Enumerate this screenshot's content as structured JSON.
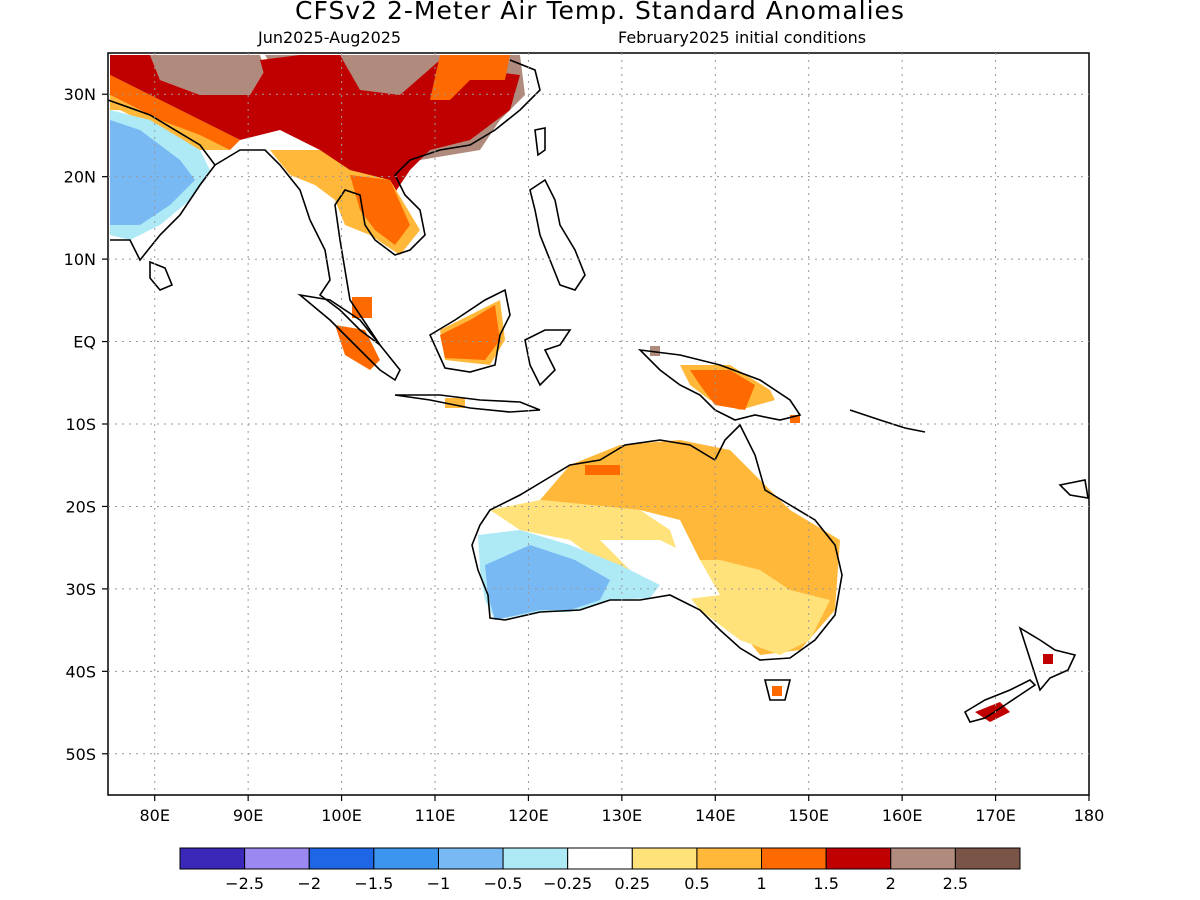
{
  "title": "CFSv2 2-Meter Air Temp. Standard Anomalies",
  "subtitle_left": "Jun2025-Aug2025",
  "subtitle_right": "February2025 initial conditions",
  "map": {
    "lon_range": [
      75,
      180
    ],
    "lat_range": [
      -55,
      35
    ],
    "lat_labels": [
      "30N",
      "20N",
      "10N",
      "EQ",
      "10S",
      "20S",
      "30S",
      "40S",
      "50S"
    ],
    "lat_values": [
      30,
      20,
      10,
      0,
      -10,
      -20,
      -30,
      -40,
      -50
    ],
    "lon_labels": [
      "80E",
      "90E",
      "100E",
      "110E",
      "120E",
      "130E",
      "140E",
      "150E",
      "160E",
      "170E",
      "180"
    ],
    "lon_values": [
      80,
      90,
      100,
      110,
      120,
      130,
      140,
      150,
      160,
      170,
      180
    ],
    "grid": true
  },
  "colorbar": {
    "colors": [
      "#3a28b8",
      "#9b88f0",
      "#1f66e6",
      "#3c96f0",
      "#78b9f4",
      "#aeeaf6",
      "#ffffff",
      "#ffe27a",
      "#ffb83a",
      "#ff6a00",
      "#c00000",
      "#b08a7c",
      "#7a5446"
    ],
    "labels": [
      "-2.5",
      "-2",
      "-1.5",
      "-1",
      "-0.5",
      "-0.25",
      "0.25",
      "0.5",
      "1",
      "1.5",
      "2",
      "2.5"
    ]
  },
  "colors": {
    "neg_05": "#78b9f4",
    "neg_025": "#aeeaf6",
    "pos_025": "#ffe27a",
    "pos_05": "#ffb83a",
    "pos_1": "#ff6a00",
    "pos_15": "#c00000",
    "pos_2": "#b08a7c"
  }
}
